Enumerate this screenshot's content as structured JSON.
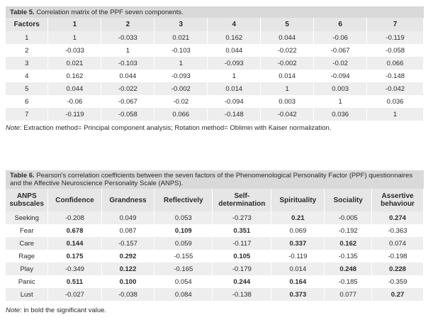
{
  "table5": {
    "caption_label": "Table 5.",
    "caption_text": "Correlation matrix of the PPF seven components.",
    "headers": [
      "Factors",
      "1",
      "2",
      "3",
      "4",
      "5",
      "6",
      "7"
    ],
    "rows": [
      [
        "1",
        "1",
        "-0.033",
        "0.021",
        "0.162",
        "0.044",
        "-0.06",
        "-0.119"
      ],
      [
        "2",
        "-0.033",
        "1",
        "-0.103",
        "0.044",
        "-0.022",
        "-0.067",
        "-0.058"
      ],
      [
        "3",
        "0.021",
        "-0.103",
        "1",
        "-0.093",
        "-0.002",
        "-0.02",
        "0.066"
      ],
      [
        "4",
        "0.162",
        "0.044",
        "-0.093",
        "1",
        "0.014",
        "-0.094",
        "-0.148"
      ],
      [
        "5",
        "0.044",
        "-0.022",
        "-0.002",
        "0.014",
        "1",
        "0.003",
        "-0.042"
      ],
      [
        "6",
        "-0.06",
        "-0.067",
        "-0.02",
        "-0.094",
        "0.003",
        "1",
        "0.036"
      ],
      [
        "7",
        "-0.119",
        "-0.058",
        "0.066",
        "-0.148",
        "-0.042",
        "0.036",
        "1"
      ]
    ],
    "note_label": "Note",
    "note_text": ": Extraction method= Principal component analysis; Rotation method= Oblimin with Kaiser normalization."
  },
  "table6": {
    "caption_label": "Table 6.",
    "caption_text": "Pearson's correlation coefficients between the seven factors of the Phenomenological Personality Factor (PPF) questionnaires and the Affective Neuroscience Personality Scale (ANPS).",
    "headers": [
      "ANPS subscales",
      "Confidence",
      "Grandness",
      "Reflectively",
      "Self-determination",
      "Spirituality",
      "Sociality",
      "Assertive behaviour"
    ],
    "rows": [
      {
        "cells": [
          "Seeking",
          "-0.208",
          "0.049",
          "0.053",
          "-0.273",
          "0.21",
          "-0.005",
          "0.274"
        ],
        "bold": [
          false,
          false,
          false,
          false,
          false,
          true,
          false,
          true
        ]
      },
      {
        "cells": [
          "Fear",
          "0.678",
          "0.087",
          "0.109",
          "0.351",
          "0.069",
          "-0.192",
          "-0.363"
        ],
        "bold": [
          false,
          true,
          false,
          true,
          true,
          false,
          false,
          false
        ]
      },
      {
        "cells": [
          "Care",
          "0.144",
          "-0.157",
          "0.059",
          "-0.117",
          "0.337",
          "0.162",
          "0.074"
        ],
        "bold": [
          false,
          true,
          false,
          false,
          false,
          true,
          true,
          false
        ]
      },
      {
        "cells": [
          "Rage",
          "0.175",
          "0.292",
          "-0.155",
          "0.105",
          "-0.119",
          "-0.135",
          "-0.198"
        ],
        "bold": [
          false,
          true,
          true,
          false,
          true,
          false,
          false,
          false
        ]
      },
      {
        "cells": [
          "Play",
          "-0.349",
          "0.122",
          "-0.165",
          "-0.179",
          "0.014",
          "0.248",
          "0.228"
        ],
        "bold": [
          false,
          false,
          true,
          false,
          false,
          false,
          true,
          true
        ]
      },
      {
        "cells": [
          "Panic",
          "0.511",
          "0.100",
          "0.054",
          "0.244",
          "0.164",
          "-0.185",
          "-0.359"
        ],
        "bold": [
          false,
          true,
          true,
          false,
          true,
          true,
          false,
          false
        ]
      },
      {
        "cells": [
          "Lust",
          "-0.027",
          "-0.038",
          "0.084",
          "-0.138",
          "0.373",
          "0.077",
          "0.27"
        ],
        "bold": [
          false,
          false,
          false,
          false,
          false,
          true,
          false,
          true
        ]
      }
    ],
    "note_label": "Note",
    "note_text": ": in bold the significant value."
  }
}
